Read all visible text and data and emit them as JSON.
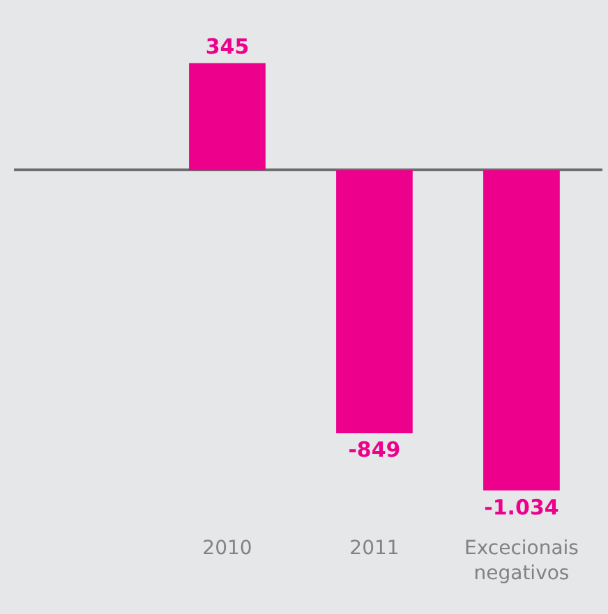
{
  "chart_data": {
    "type": "bar",
    "categories": [
      "2010",
      "2011",
      "Excecionais negativos"
    ],
    "values": [
      345,
      -849,
      -1034
    ],
    "value_labels": [
      "345",
      "-849",
      "-1.034"
    ],
    "color": "#ec008c"
  }
}
